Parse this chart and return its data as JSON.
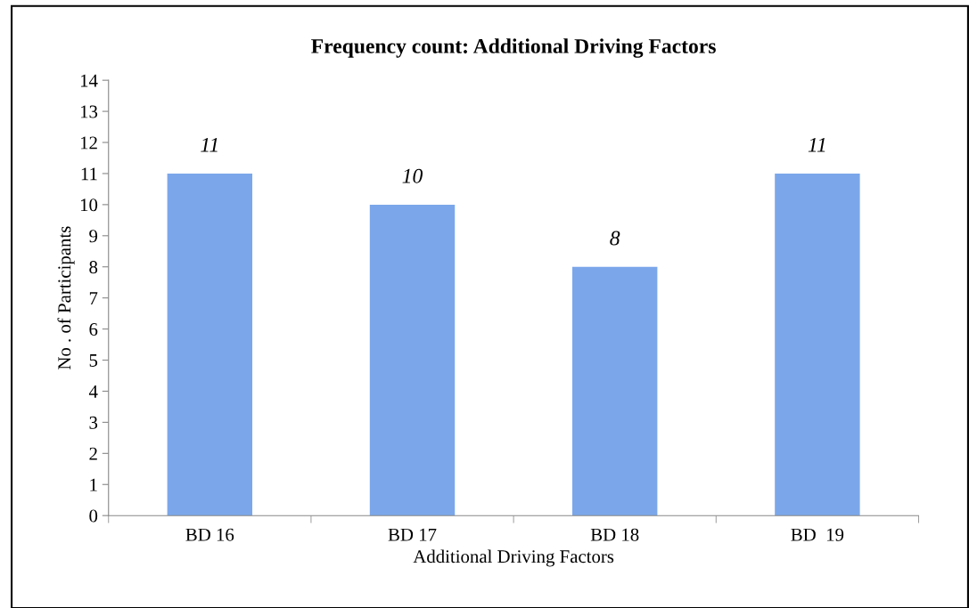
{
  "chart_data": {
    "type": "bar",
    "title": "Frequency count: Additional Driving Factors",
    "xlabel": "Additional Driving Factors",
    "ylabel": "No . of Participants",
    "categories": [
      "BD 16",
      "BD 17",
      "BD 18",
      "BD  19"
    ],
    "values": [
      11,
      10,
      8,
      11
    ],
    "color": "#7ba7ea",
    "ylim": [
      0,
      14
    ],
    "yticks": [
      0,
      1,
      2,
      3,
      4,
      5,
      6,
      7,
      8,
      9,
      10,
      11,
      12,
      13,
      14
    ],
    "data_labels": true,
    "grid": false,
    "legend": false
  }
}
